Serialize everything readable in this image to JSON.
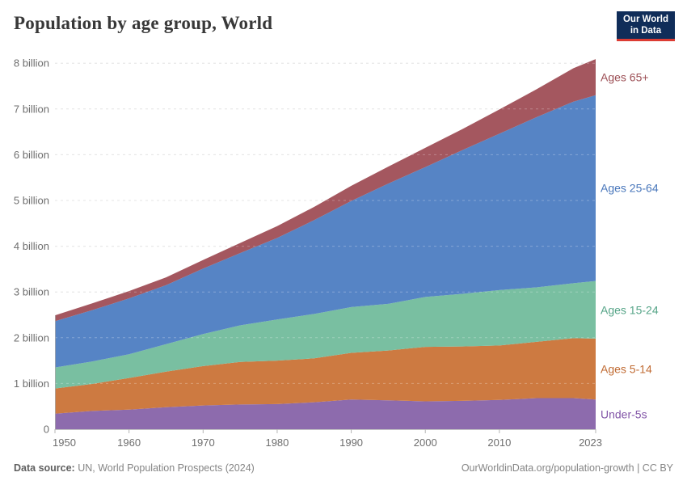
{
  "header": {
    "title": "Population by age group, World"
  },
  "logo": {
    "line1": "Our World",
    "line2": "in Data"
  },
  "colors": {
    "logo_bg": "#102d59",
    "logo_accent": "#dc3b33",
    "title_text": "#383838",
    "tick_label": "#6e6e6e",
    "grid": "#dcdcdc",
    "axis_line": "#c4c4c4",
    "footer_text": "#858585"
  },
  "footer": {
    "source_label": "Data source:",
    "source_text": " UN, World Population Prospects (2024)",
    "link_text": "OurWorldinData.org/population-growth | CC BY"
  },
  "chart_data": {
    "type": "area",
    "stacked": true,
    "title": "Population by age group, World",
    "xlabel": "",
    "ylabel": "",
    "unit": "billion people",
    "xlim": [
      1950,
      2023
    ],
    "ylim": [
      0,
      8
    ],
    "grid": "horizontal-dashed",
    "legend_position": "right-edge-labels",
    "x": [
      1950,
      1955,
      1960,
      1965,
      1970,
      1975,
      1980,
      1985,
      1990,
      1995,
      2000,
      2005,
      2010,
      2015,
      2020,
      2023
    ],
    "series": [
      {
        "name": "Under-5s",
        "color": "#8d6bad",
        "label_color": "#8356a8",
        "values": [
          0.34,
          0.4,
          0.43,
          0.48,
          0.52,
          0.54,
          0.55,
          0.59,
          0.65,
          0.63,
          0.61,
          0.62,
          0.64,
          0.68,
          0.68,
          0.65
        ]
      },
      {
        "name": "Ages 5-14",
        "color": "#cd7a41",
        "label_color": "#c06b33",
        "values": [
          0.55,
          0.59,
          0.69,
          0.78,
          0.86,
          0.93,
          0.95,
          0.96,
          1.02,
          1.09,
          1.19,
          1.19,
          1.19,
          1.23,
          1.31,
          1.33
        ]
      },
      {
        "name": "Ages 15-24",
        "color": "#79bfa1",
        "label_color": "#55a487",
        "values": [
          0.46,
          0.49,
          0.52,
          0.6,
          0.7,
          0.8,
          0.9,
          0.97,
          1.0,
          1.02,
          1.09,
          1.15,
          1.21,
          1.19,
          1.2,
          1.26
        ]
      },
      {
        "name": "Ages 25-64",
        "color": "#5684c5",
        "label_color": "#4977bb",
        "values": [
          1.01,
          1.12,
          1.22,
          1.29,
          1.43,
          1.58,
          1.78,
          2.05,
          2.32,
          2.63,
          2.84,
          3.14,
          3.42,
          3.72,
          3.97,
          4.06
        ]
      },
      {
        "name": "Ages 65+",
        "color": "#a4575f",
        "label_color": "#9c4f55",
        "values": [
          0.13,
          0.15,
          0.16,
          0.17,
          0.19,
          0.22,
          0.26,
          0.29,
          0.33,
          0.37,
          0.42,
          0.46,
          0.53,
          0.61,
          0.73,
          0.79
        ]
      }
    ],
    "x_ticks": {
      "values": [
        1950,
        1960,
        1970,
        1980,
        1990,
        2000,
        2010,
        2023
      ],
      "labels": [
        "1950",
        "1960",
        "1970",
        "1980",
        "1990",
        "2000",
        "2010",
        "2023"
      ]
    },
    "y_ticks": {
      "values": [
        0,
        1,
        2,
        3,
        4,
        5,
        6,
        7,
        8
      ],
      "labels": [
        "0",
        "1 billion",
        "2 billion",
        "3 billion",
        "4 billion",
        "5 billion",
        "6 billion",
        "7 billion",
        "8 billion"
      ]
    }
  }
}
